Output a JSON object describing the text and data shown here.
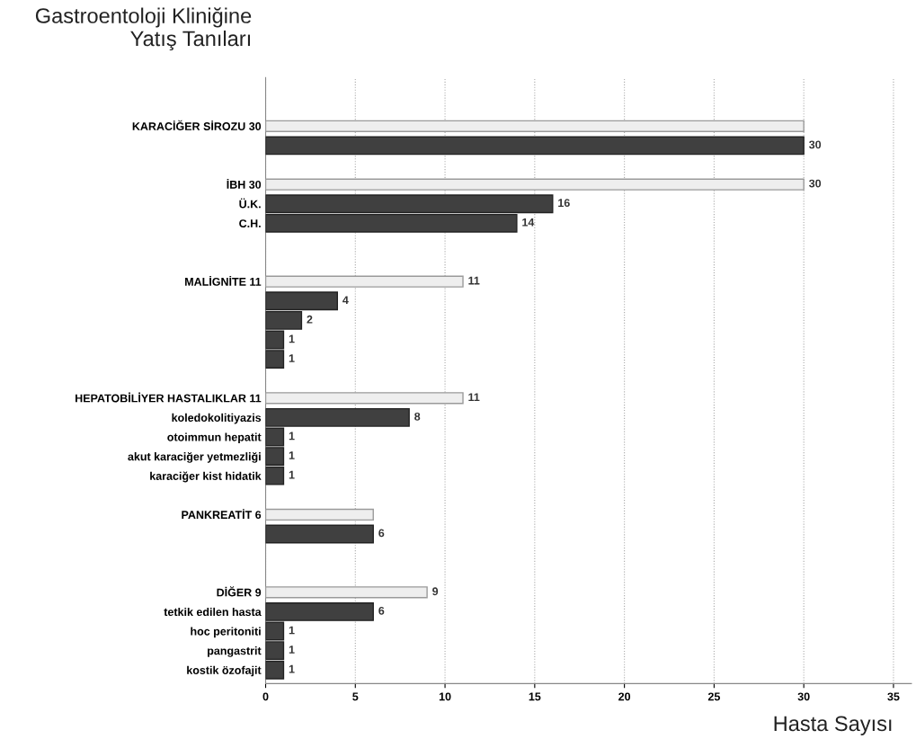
{
  "chart_data": {
    "type": "bar",
    "orientation": "horizontal",
    "title": "Gastroentoloji Kliniğine\nYatış Tanıları",
    "xlabel": "Hasta Sayısı",
    "categories": [
      "KARACİĞER SİROZU 30",
      null,
      null,
      "İBH 30",
      "Ü.K.",
      "C.H.",
      null,
      null,
      "MALİGNİTE 11",
      null,
      null,
      null,
      null,
      null,
      "HEPATOBİLİYER HASTALIKLAR 11",
      "koledokolitiyazis",
      "otoimmun hepatit",
      "akut karaciğer yetmezliği",
      "karaciğer kist hidatik",
      null,
      "PANKREATİT 6",
      null,
      null,
      null,
      "DİĞER 9",
      "tetkik edilen hasta",
      "hoc peritoniti",
      "pangastrit",
      "kostik özofajit"
    ],
    "series": [
      {
        "color": "#eeeeee",
        "values": [
          30,
          null,
          null,
          30,
          null,
          null,
          null,
          null,
          11,
          null,
          null,
          null,
          null,
          null,
          11,
          null,
          null,
          null,
          null,
          null,
          6,
          null,
          null,
          null,
          9,
          null,
          null,
          null,
          null
        ],
        "value_labels": [
          null,
          null,
          null,
          "30",
          null,
          null,
          null,
          null,
          "11",
          null,
          null,
          null,
          null,
          null,
          "11",
          null,
          null,
          null,
          null,
          null,
          null,
          null,
          null,
          null,
          "9",
          null,
          null,
          null,
          null
        ]
      },
      {
        "color": "#404040",
        "values": [
          null,
          30,
          null,
          null,
          16,
          14,
          null,
          null,
          null,
          4,
          2,
          1,
          1,
          null,
          null,
          8,
          1,
          1,
          1,
          null,
          null,
          6,
          null,
          null,
          null,
          6,
          1,
          1,
          1
        ],
        "value_labels": [
          null,
          "30",
          null,
          null,
          "16",
          "14",
          null,
          null,
          null,
          "4",
          "2",
          "1",
          "1",
          null,
          null,
          "8",
          "1",
          "1",
          "1",
          null,
          null,
          "6",
          null,
          null,
          null,
          "6",
          "1",
          "1",
          "1"
        ]
      }
    ],
    "xlim": [
      0,
      36
    ],
    "xticks": [
      0,
      5,
      10,
      15,
      20,
      25,
      30,
      35
    ],
    "grid": "x"
  }
}
